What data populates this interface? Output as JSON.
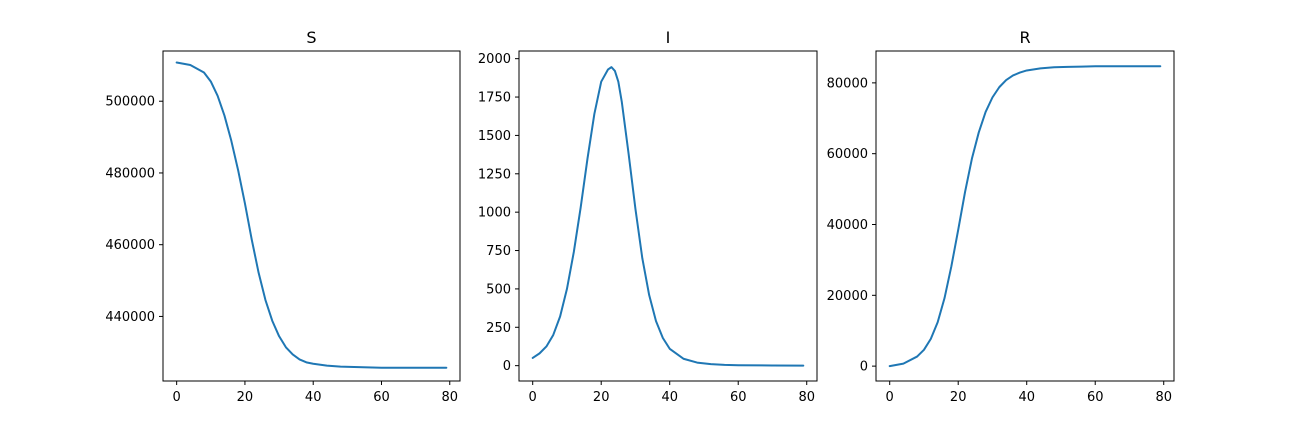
{
  "chart_data": [
    {
      "type": "line",
      "title": "S",
      "xlim": [
        -4,
        83
      ],
      "ylim": [
        422000,
        514000
      ],
      "xticks": [
        0,
        20,
        40,
        60,
        80
      ],
      "yticks": [
        440000,
        460000,
        480000,
        500000
      ],
      "line_color": "#1f77b4",
      "series": [
        {
          "x": [
            0,
            4,
            8,
            10,
            12,
            14,
            16,
            18,
            20,
            22,
            24,
            26,
            28,
            30,
            32,
            34,
            36,
            38,
            40,
            44,
            48,
            52,
            56,
            60,
            70,
            79
          ],
          "values": [
            510800,
            510100,
            508000,
            505500,
            501500,
            496000,
            489000,
            480800,
            471500,
            461400,
            452200,
            444600,
            438800,
            434500,
            431400,
            429400,
            428000,
            427200,
            426800,
            426300,
            426000,
            425900,
            425800,
            425700,
            425700,
            425700
          ]
        }
      ]
    },
    {
      "type": "line",
      "title": "I",
      "xlim": [
        -4,
        83
      ],
      "ylim": [
        -100,
        2050
      ],
      "xticks": [
        0,
        20,
        40,
        60,
        80
      ],
      "yticks": [
        0,
        250,
        500,
        750,
        1000,
        1250,
        1500,
        1750,
        2000
      ],
      "line_color": "#1f77b4",
      "series": [
        {
          "x": [
            0,
            2,
            4,
            6,
            8,
            10,
            12,
            14,
            16,
            18,
            20,
            22,
            23,
            24,
            25,
            26,
            28,
            30,
            32,
            34,
            36,
            38,
            40,
            44,
            48,
            52,
            56,
            60,
            70,
            79
          ],
          "values": [
            50,
            80,
            125,
            200,
            320,
            500,
            740,
            1030,
            1350,
            1640,
            1850,
            1930,
            1945,
            1920,
            1850,
            1720,
            1380,
            1020,
            700,
            460,
            290,
            180,
            110,
            45,
            20,
            10,
            5,
            3,
            1,
            0
          ]
        }
      ]
    },
    {
      "type": "line",
      "title": "R",
      "xlim": [
        -4,
        83
      ],
      "ylim": [
        -4200,
        89000
      ],
      "xticks": [
        0,
        20,
        40,
        60,
        80
      ],
      "yticks": [
        0,
        20000,
        40000,
        60000,
        80000
      ],
      "line_color": "#1f77b4",
      "series": [
        {
          "x": [
            0,
            4,
            8,
            10,
            12,
            14,
            16,
            18,
            20,
            22,
            24,
            26,
            28,
            30,
            32,
            34,
            36,
            38,
            40,
            44,
            48,
            52,
            56,
            60,
            70,
            79
          ],
          "values": [
            0,
            700,
            2700,
            4600,
            7700,
            12400,
            19200,
            28200,
            38500,
            49200,
            58600,
            66000,
            71800,
            75900,
            78800,
            80800,
            82100,
            82900,
            83500,
            84100,
            84400,
            84500,
            84600,
            84700,
            84700,
            84700
          ]
        }
      ]
    }
  ]
}
